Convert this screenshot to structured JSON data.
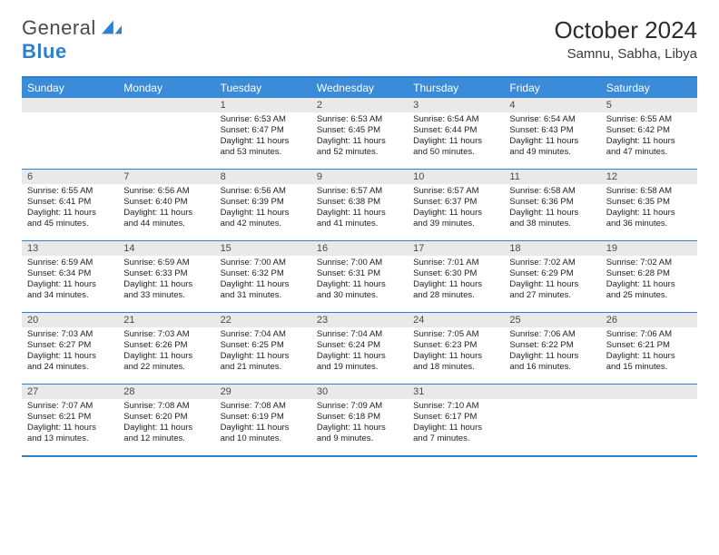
{
  "logo": {
    "text1": "General",
    "text2": "Blue"
  },
  "title": "October 2024",
  "location": "Samnu, Sabha, Libya",
  "colors": {
    "accent": "#3a8bd8",
    "border": "#2f7fd1",
    "daynum_bg": "#e9e9e9",
    "text": "#202020"
  },
  "day_headers": [
    "Sunday",
    "Monday",
    "Tuesday",
    "Wednesday",
    "Thursday",
    "Friday",
    "Saturday"
  ],
  "weeks": [
    [
      {
        "n": "",
        "sr": "",
        "ss": "",
        "dl": ""
      },
      {
        "n": "",
        "sr": "",
        "ss": "",
        "dl": ""
      },
      {
        "n": "1",
        "sr": "Sunrise: 6:53 AM",
        "ss": "Sunset: 6:47 PM",
        "dl": "Daylight: 11 hours and 53 minutes."
      },
      {
        "n": "2",
        "sr": "Sunrise: 6:53 AM",
        "ss": "Sunset: 6:45 PM",
        "dl": "Daylight: 11 hours and 52 minutes."
      },
      {
        "n": "3",
        "sr": "Sunrise: 6:54 AM",
        "ss": "Sunset: 6:44 PM",
        "dl": "Daylight: 11 hours and 50 minutes."
      },
      {
        "n": "4",
        "sr": "Sunrise: 6:54 AM",
        "ss": "Sunset: 6:43 PM",
        "dl": "Daylight: 11 hours and 49 minutes."
      },
      {
        "n": "5",
        "sr": "Sunrise: 6:55 AM",
        "ss": "Sunset: 6:42 PM",
        "dl": "Daylight: 11 hours and 47 minutes."
      }
    ],
    [
      {
        "n": "6",
        "sr": "Sunrise: 6:55 AM",
        "ss": "Sunset: 6:41 PM",
        "dl": "Daylight: 11 hours and 45 minutes."
      },
      {
        "n": "7",
        "sr": "Sunrise: 6:56 AM",
        "ss": "Sunset: 6:40 PM",
        "dl": "Daylight: 11 hours and 44 minutes."
      },
      {
        "n": "8",
        "sr": "Sunrise: 6:56 AM",
        "ss": "Sunset: 6:39 PM",
        "dl": "Daylight: 11 hours and 42 minutes."
      },
      {
        "n": "9",
        "sr": "Sunrise: 6:57 AM",
        "ss": "Sunset: 6:38 PM",
        "dl": "Daylight: 11 hours and 41 minutes."
      },
      {
        "n": "10",
        "sr": "Sunrise: 6:57 AM",
        "ss": "Sunset: 6:37 PM",
        "dl": "Daylight: 11 hours and 39 minutes."
      },
      {
        "n": "11",
        "sr": "Sunrise: 6:58 AM",
        "ss": "Sunset: 6:36 PM",
        "dl": "Daylight: 11 hours and 38 minutes."
      },
      {
        "n": "12",
        "sr": "Sunrise: 6:58 AM",
        "ss": "Sunset: 6:35 PM",
        "dl": "Daylight: 11 hours and 36 minutes."
      }
    ],
    [
      {
        "n": "13",
        "sr": "Sunrise: 6:59 AM",
        "ss": "Sunset: 6:34 PM",
        "dl": "Daylight: 11 hours and 34 minutes."
      },
      {
        "n": "14",
        "sr": "Sunrise: 6:59 AM",
        "ss": "Sunset: 6:33 PM",
        "dl": "Daylight: 11 hours and 33 minutes."
      },
      {
        "n": "15",
        "sr": "Sunrise: 7:00 AM",
        "ss": "Sunset: 6:32 PM",
        "dl": "Daylight: 11 hours and 31 minutes."
      },
      {
        "n": "16",
        "sr": "Sunrise: 7:00 AM",
        "ss": "Sunset: 6:31 PM",
        "dl": "Daylight: 11 hours and 30 minutes."
      },
      {
        "n": "17",
        "sr": "Sunrise: 7:01 AM",
        "ss": "Sunset: 6:30 PM",
        "dl": "Daylight: 11 hours and 28 minutes."
      },
      {
        "n": "18",
        "sr": "Sunrise: 7:02 AM",
        "ss": "Sunset: 6:29 PM",
        "dl": "Daylight: 11 hours and 27 minutes."
      },
      {
        "n": "19",
        "sr": "Sunrise: 7:02 AM",
        "ss": "Sunset: 6:28 PM",
        "dl": "Daylight: 11 hours and 25 minutes."
      }
    ],
    [
      {
        "n": "20",
        "sr": "Sunrise: 7:03 AM",
        "ss": "Sunset: 6:27 PM",
        "dl": "Daylight: 11 hours and 24 minutes."
      },
      {
        "n": "21",
        "sr": "Sunrise: 7:03 AM",
        "ss": "Sunset: 6:26 PM",
        "dl": "Daylight: 11 hours and 22 minutes."
      },
      {
        "n": "22",
        "sr": "Sunrise: 7:04 AM",
        "ss": "Sunset: 6:25 PM",
        "dl": "Daylight: 11 hours and 21 minutes."
      },
      {
        "n": "23",
        "sr": "Sunrise: 7:04 AM",
        "ss": "Sunset: 6:24 PM",
        "dl": "Daylight: 11 hours and 19 minutes."
      },
      {
        "n": "24",
        "sr": "Sunrise: 7:05 AM",
        "ss": "Sunset: 6:23 PM",
        "dl": "Daylight: 11 hours and 18 minutes."
      },
      {
        "n": "25",
        "sr": "Sunrise: 7:06 AM",
        "ss": "Sunset: 6:22 PM",
        "dl": "Daylight: 11 hours and 16 minutes."
      },
      {
        "n": "26",
        "sr": "Sunrise: 7:06 AM",
        "ss": "Sunset: 6:21 PM",
        "dl": "Daylight: 11 hours and 15 minutes."
      }
    ],
    [
      {
        "n": "27",
        "sr": "Sunrise: 7:07 AM",
        "ss": "Sunset: 6:21 PM",
        "dl": "Daylight: 11 hours and 13 minutes."
      },
      {
        "n": "28",
        "sr": "Sunrise: 7:08 AM",
        "ss": "Sunset: 6:20 PM",
        "dl": "Daylight: 11 hours and 12 minutes."
      },
      {
        "n": "29",
        "sr": "Sunrise: 7:08 AM",
        "ss": "Sunset: 6:19 PM",
        "dl": "Daylight: 11 hours and 10 minutes."
      },
      {
        "n": "30",
        "sr": "Sunrise: 7:09 AM",
        "ss": "Sunset: 6:18 PM",
        "dl": "Daylight: 11 hours and 9 minutes."
      },
      {
        "n": "31",
        "sr": "Sunrise: 7:10 AM",
        "ss": "Sunset: 6:17 PM",
        "dl": "Daylight: 11 hours and 7 minutes."
      },
      {
        "n": "",
        "sr": "",
        "ss": "",
        "dl": ""
      },
      {
        "n": "",
        "sr": "",
        "ss": "",
        "dl": ""
      }
    ]
  ]
}
